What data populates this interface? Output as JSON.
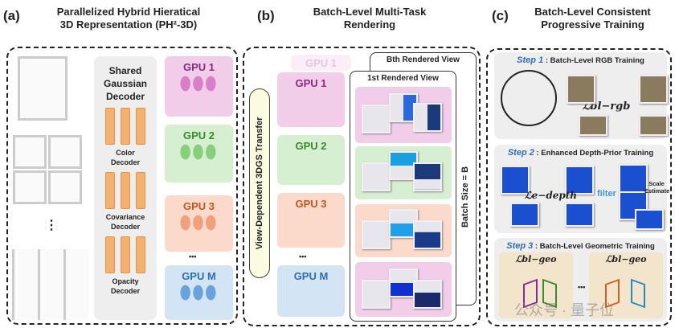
{
  "panel_a": {
    "label": "(a)",
    "title_line1": "Parallelized Hybrid Hieratical",
    "title_line2": "3D Representation (PH²-3D)",
    "decoder_title": "Shared Gaussian Decoder",
    "decoders": [
      "Color Decoder",
      "Covariance Decoder",
      "Opacity Decoder"
    ],
    "gpus": [
      "GPU 1",
      "GPU 2",
      "GPU 3",
      "GPU M"
    ],
    "ellipsis": "⋮",
    "gpu_ellipsis": "•••"
  },
  "panel_b": {
    "label": "(b)",
    "title_line1": "Batch-Level Multi-Task",
    "title_line2": "Rendering",
    "transfer": "View-Dependent 3DGS Transfer",
    "gpus": [
      "GPU 1",
      "GPU 2",
      "GPU 3",
      "GPU M"
    ],
    "faded_gpu": "GPU 1",
    "bth_view": "Bth Rendered View",
    "first_view": "1st Rendered View",
    "batch_size": "Batch Size = B",
    "gpu_ellipsis": "•••"
  },
  "panel_c": {
    "label": "(c)",
    "title_line1": "Batch-Level Consistent",
    "title_line2": "Progressive Training",
    "step1": {
      "step": "Step 1",
      "title": ": Batch-Level RGB Training",
      "loss": "ℒbl−rgb"
    },
    "step2": {
      "step": "Step 2",
      "title": ": Enhanced Depth-Prior Training",
      "loss": "ℒe−depth",
      "filter": "filter",
      "scale": "Scale Estimate"
    },
    "step3": {
      "step": "Step 3",
      "title": ": Batch-Level Geometric Training",
      "loss": "ℒbl−geo",
      "ellipsis": "•••"
    }
  },
  "watermark": "公众号 · 量子位",
  "colors": {
    "gpu1": "#f2cdea",
    "gpu2": "#d6efd0",
    "gpu3": "#fbdacb",
    "gpuM": "#d3e5f5",
    "gpu1_text": "#8a2a80",
    "gpu2_text": "#3a8a2e",
    "gpu3_text": "#c8551e",
    "gpuM_text": "#2e6db4"
  }
}
